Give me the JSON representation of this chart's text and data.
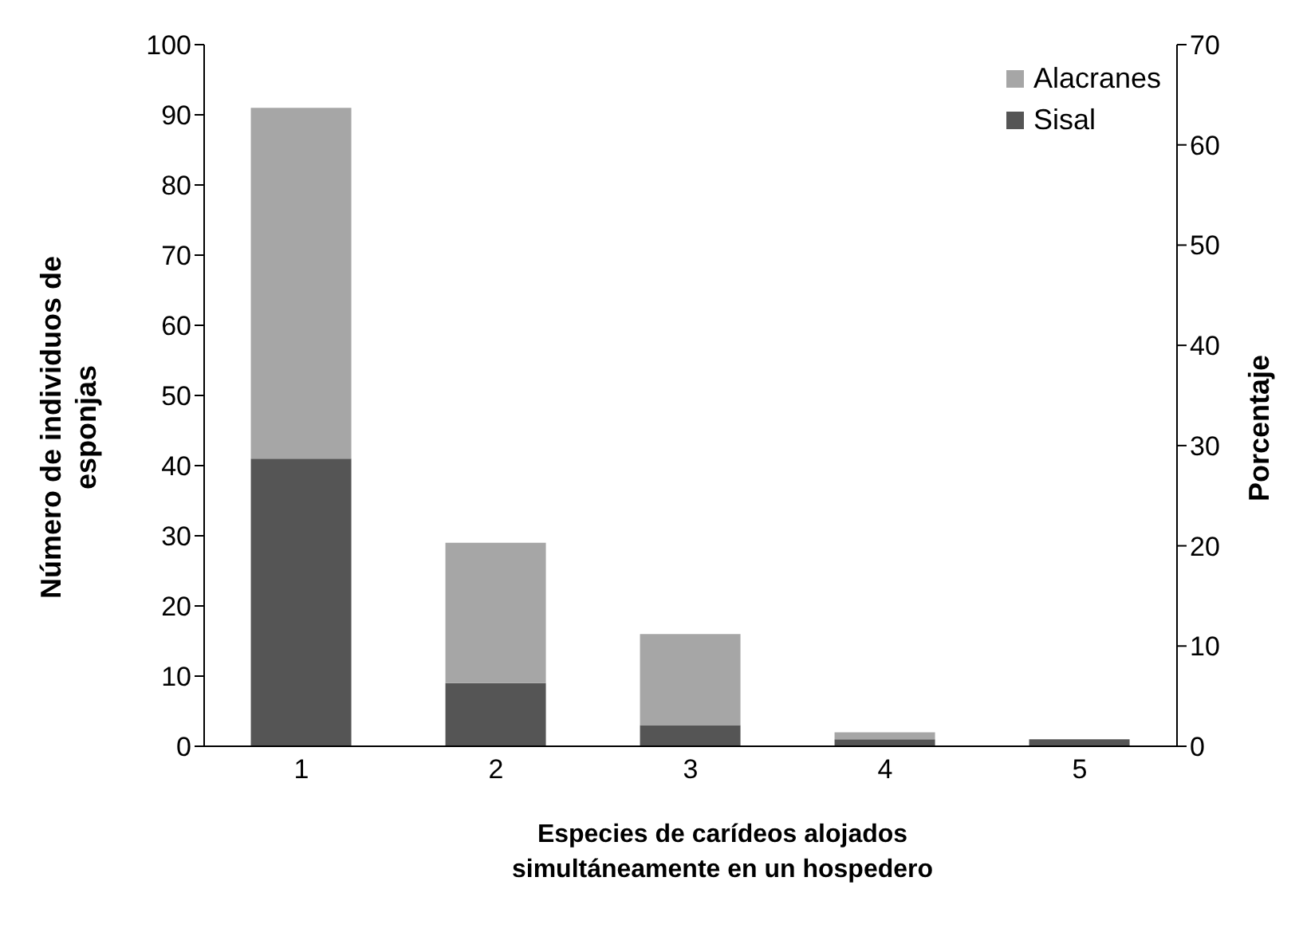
{
  "chart_data": {
    "type": "bar",
    "stacked": true,
    "xlabel": "Especies de carídeos alojados simultáneamente en un hospedero",
    "ylabel": "Número de individuos de esponjas",
    "y2label": "Porcentaje",
    "categories": [
      "1",
      "2",
      "3",
      "4",
      "5"
    ],
    "series": [
      {
        "name": "Sisal",
        "color": "#555555",
        "values": [
          41,
          9,
          3,
          1,
          1
        ]
      },
      {
        "name": "Alacranes",
        "color": "#a6a6a6",
        "values": [
          50,
          20,
          13,
          1,
          0
        ]
      }
    ],
    "ylim": [
      0,
      100
    ],
    "yticks": [
      0,
      10,
      20,
      30,
      40,
      50,
      60,
      70,
      80,
      90,
      100
    ],
    "y2lim": [
      0,
      70
    ],
    "y2ticks": [
      0,
      10,
      20,
      30,
      40,
      50,
      60,
      70
    ],
    "grid": false,
    "legend": "top right"
  }
}
